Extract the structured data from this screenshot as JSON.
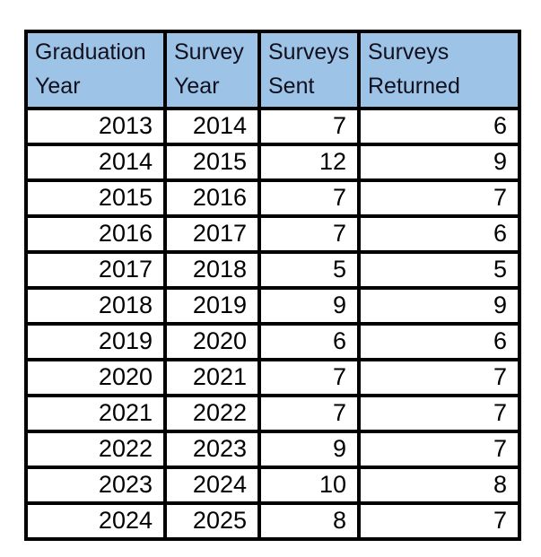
{
  "table": {
    "columns": [
      {
        "id": "graduation-year",
        "label": "Graduation Year"
      },
      {
        "id": "survey-year",
        "label": "Survey Year"
      },
      {
        "id": "surveys-sent",
        "label": "Surveys Sent"
      },
      {
        "id": "surveys-returned",
        "label": "Surveys Returned"
      }
    ],
    "rows": [
      [
        "2013",
        "2014",
        "7",
        "6"
      ],
      [
        "2014",
        "2015",
        "12",
        "9"
      ],
      [
        "2015",
        "2016",
        "7",
        "7"
      ],
      [
        "2016",
        "2017",
        "7",
        "6"
      ],
      [
        "2017",
        "2018",
        "5",
        "5"
      ],
      [
        "2018",
        "2019",
        "9",
        "9"
      ],
      [
        "2019",
        "2020",
        "6",
        "6"
      ],
      [
        "2020",
        "2021",
        "7",
        "7"
      ],
      [
        "2021",
        "2022",
        "7",
        "7"
      ],
      [
        "2022",
        "2023",
        "9",
        "7"
      ],
      [
        "2023",
        "2024",
        "10",
        "8"
      ],
      [
        "2024",
        "2025",
        "8",
        "7"
      ]
    ]
  },
  "chart_data": {
    "type": "table",
    "title": "",
    "columns": [
      "Graduation Year",
      "Survey Year",
      "Surveys Sent",
      "Surveys Returned"
    ],
    "rows": [
      [
        2013,
        2014,
        7,
        6
      ],
      [
        2014,
        2015,
        12,
        9
      ],
      [
        2015,
        2016,
        7,
        7
      ],
      [
        2016,
        2017,
        7,
        6
      ],
      [
        2017,
        2018,
        5,
        5
      ],
      [
        2018,
        2019,
        9,
        9
      ],
      [
        2019,
        2020,
        6,
        6
      ],
      [
        2020,
        2021,
        7,
        7
      ],
      [
        2021,
        2022,
        7,
        7
      ],
      [
        2022,
        2023,
        9,
        7
      ],
      [
        2023,
        2024,
        10,
        8
      ],
      [
        2024,
        2025,
        8,
        7
      ]
    ],
    "layout": {
      "header_align": "left",
      "cell_align": "right",
      "grid": true,
      "legend": "none"
    }
  },
  "colors": {
    "header_bg": "#9DC3E6",
    "border": "#000000",
    "header_text": "#10101e",
    "cell_text": "#000000",
    "page_bg": "#ffffff"
  }
}
